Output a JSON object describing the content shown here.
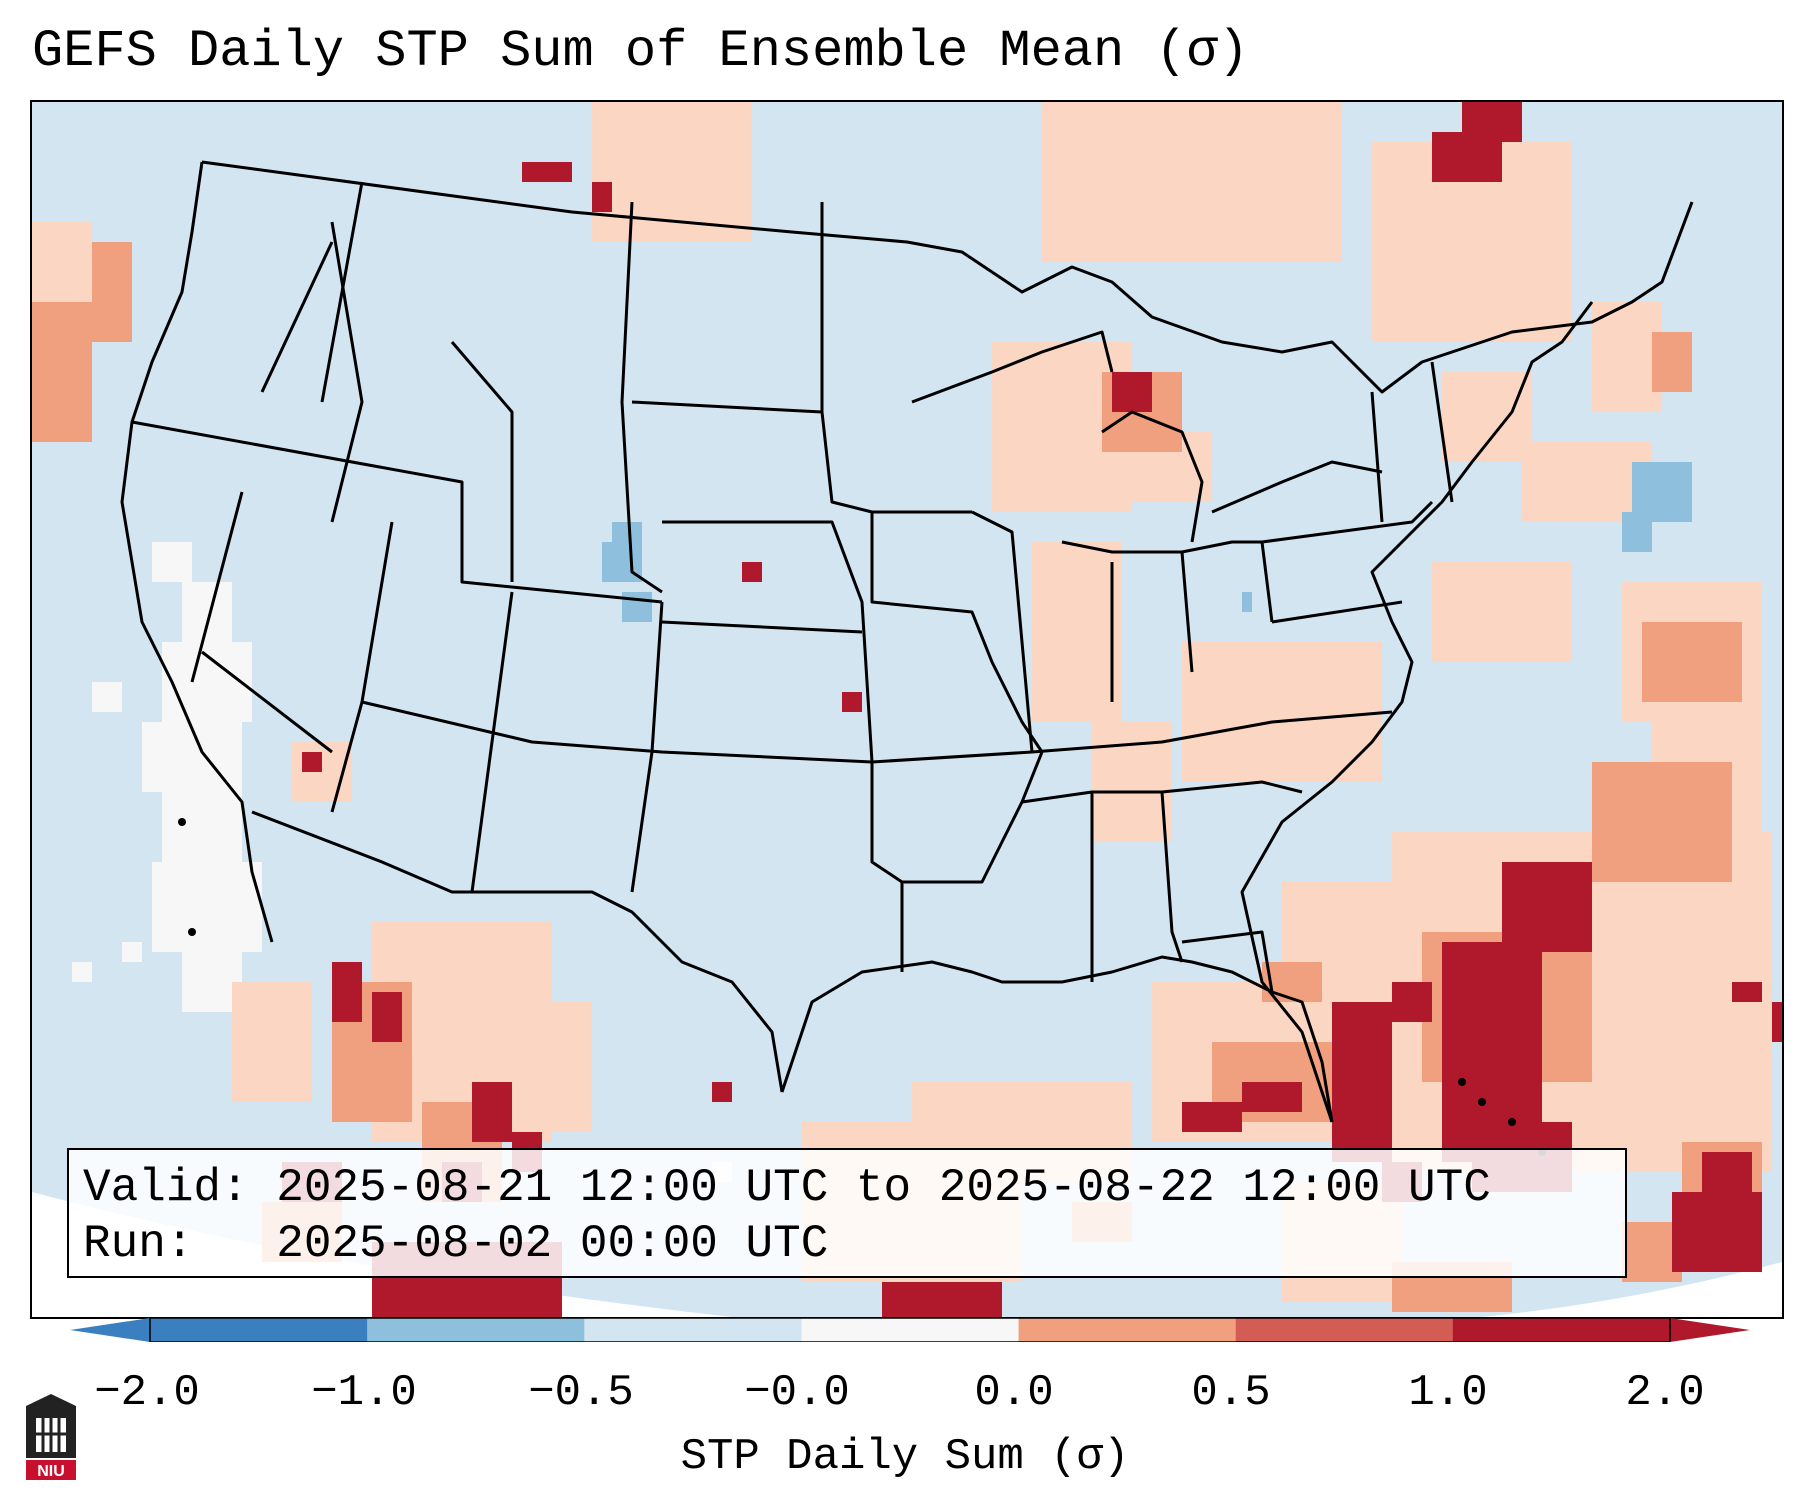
{
  "figure": {
    "title": "GEFS Daily STP Sum of Ensemble Mean (σ)",
    "valid_line": "Valid: 2025-08-21 12:00 UTC to 2025-08-22 12:00 UTC",
    "run_line": "Run:   2025-08-02 00:00 UTC",
    "colorbar_label": "STP Daily Sum (σ)",
    "logo_text": "NIU"
  },
  "colorbar": {
    "ticks": [
      "−2.0",
      "−1.0",
      "−0.5",
      "−0.0",
      "0.0",
      "0.5",
      "1.0",
      "2.0"
    ],
    "colors": [
      "#3a7fbf",
      "#8ec0de",
      "#d2e5f1",
      "#f7f7f7",
      "#fbd7c3",
      "#f0a07f",
      "#d35d55",
      "#b0182b"
    ]
  },
  "map_colors": {
    "background": "#d2e5f1",
    "outside_domain": "#ffffff",
    "boundary": "#000000"
  }
}
